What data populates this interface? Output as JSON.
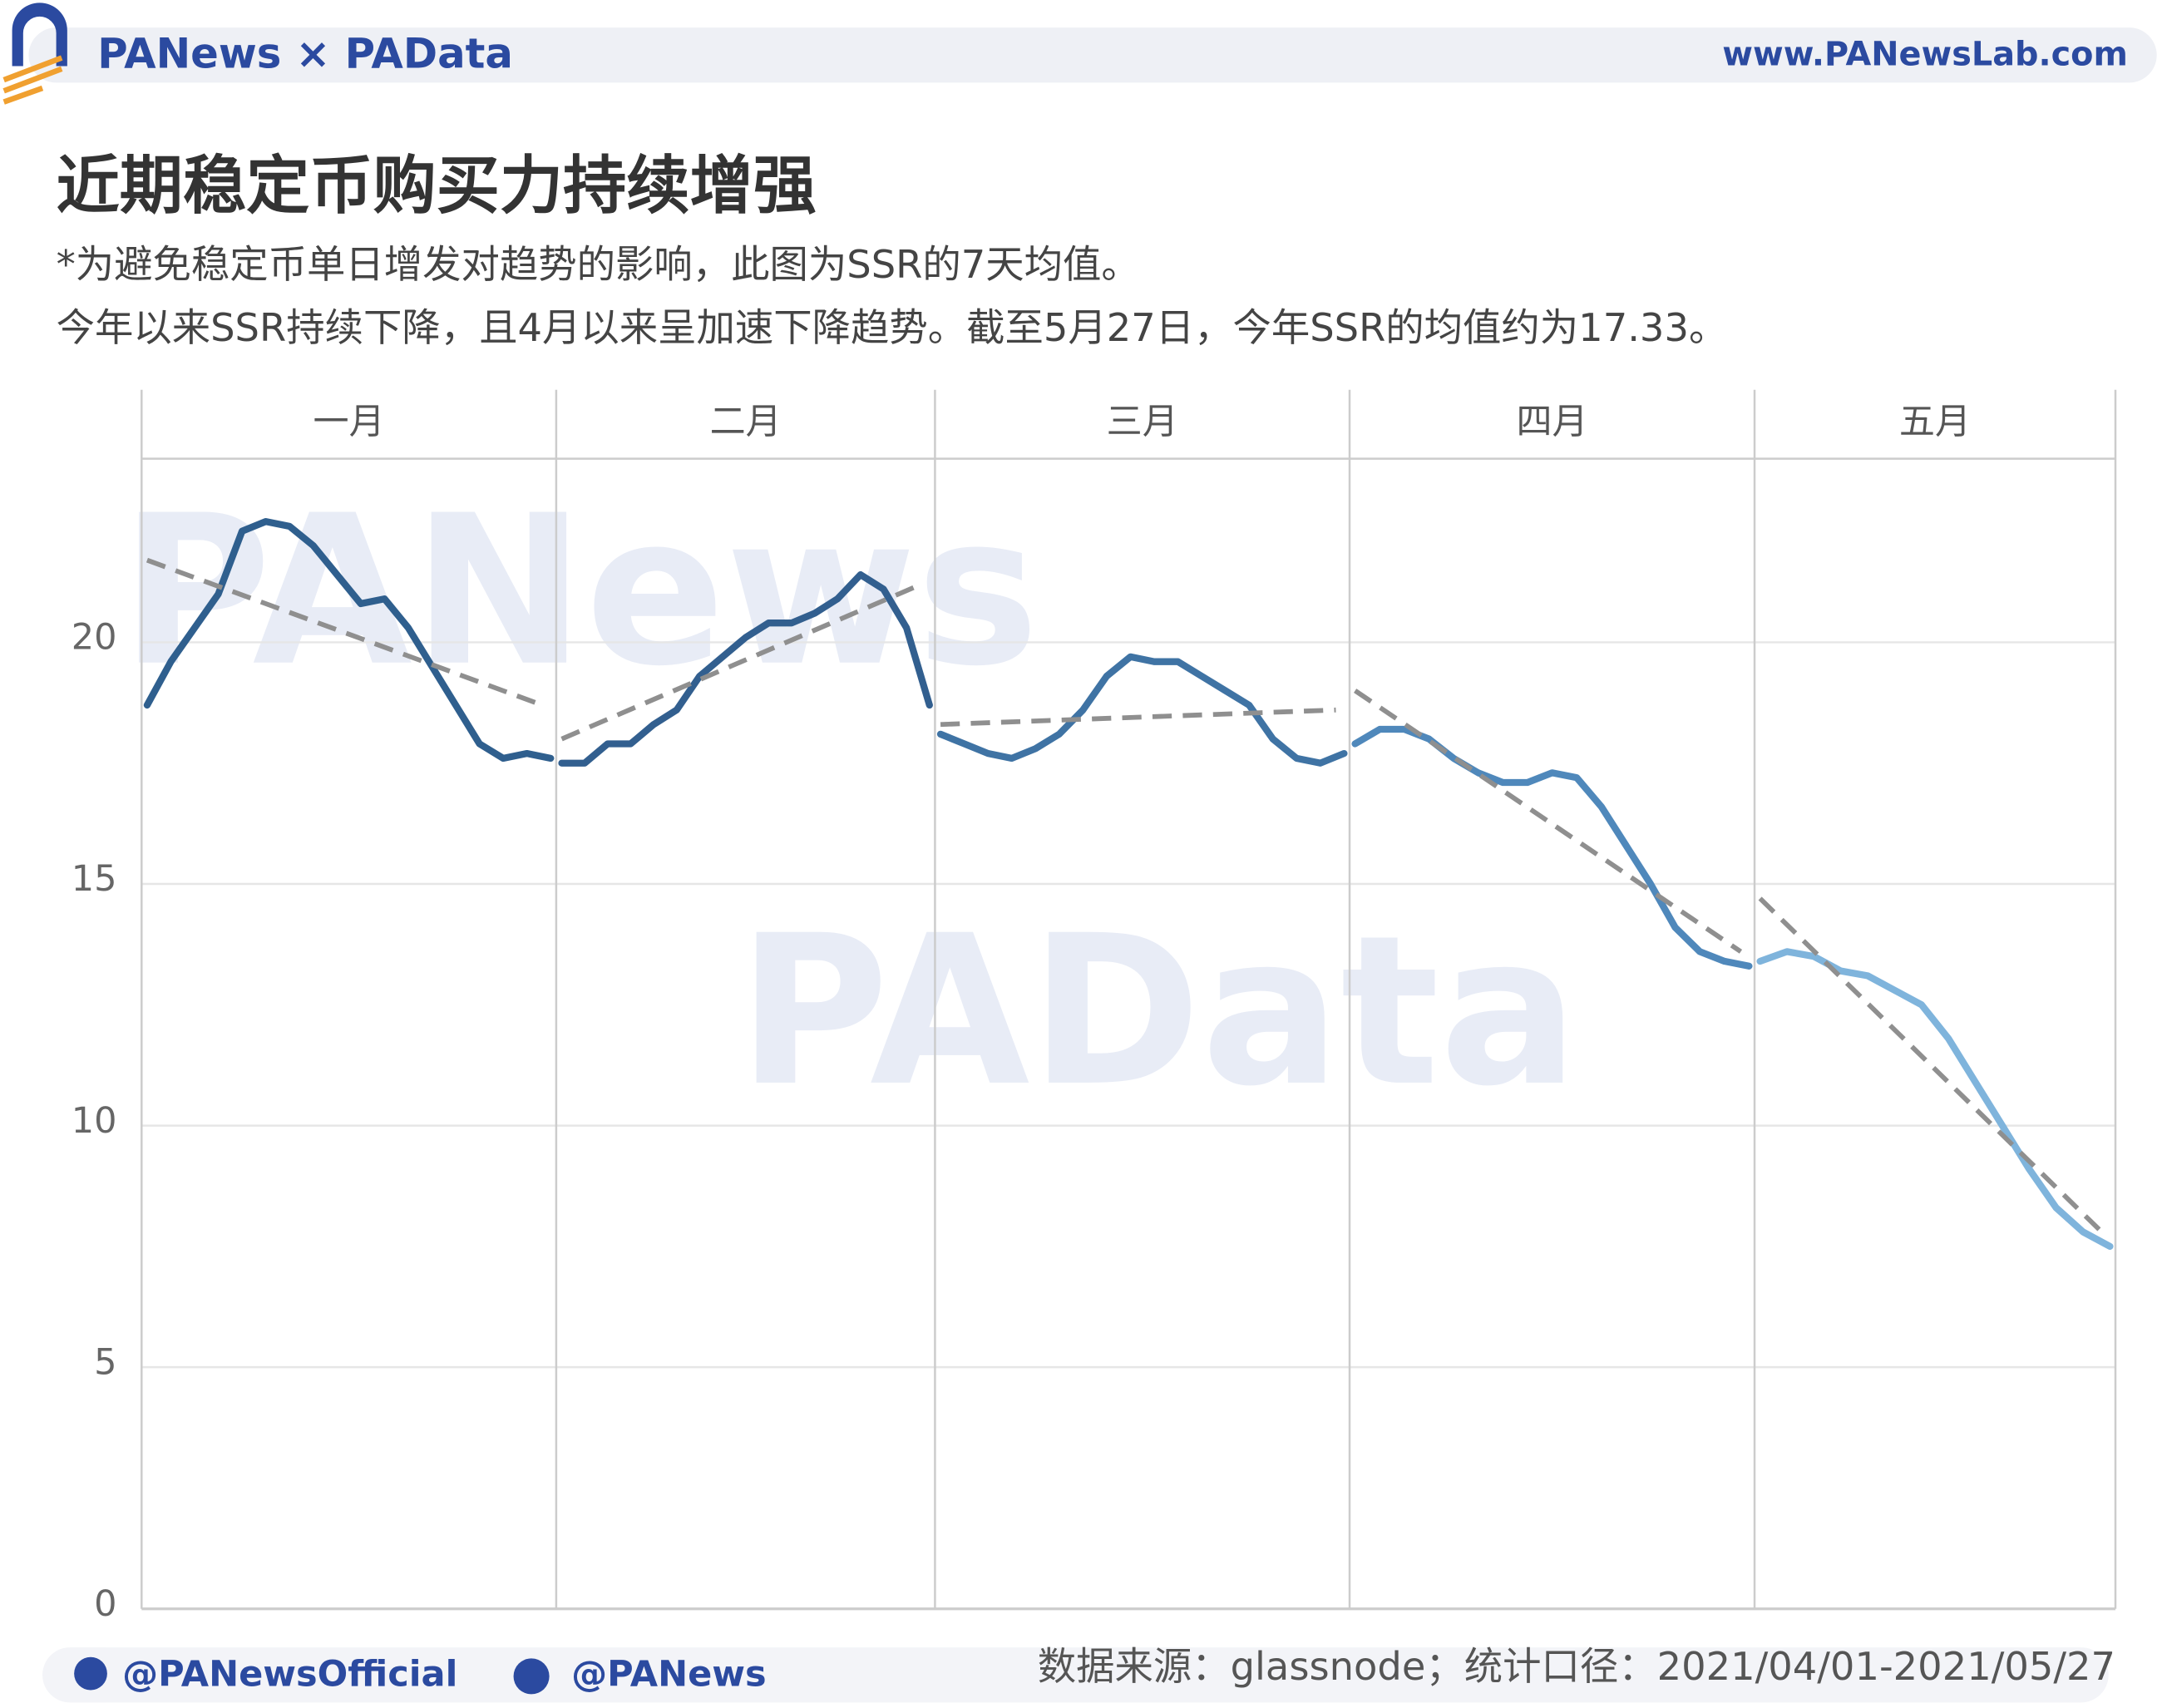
{
  "header": {
    "brand": "PANews × PAData",
    "site": "www.PANewsLab.com"
  },
  "chart_data": {
    "type": "line",
    "title": "近期稳定币购买力持续增强",
    "subtitle": [
      "*为避免稳定币单日增发对趋势的影响，此图为SSR的7天均值。",
      "今年以来SSR持续下降，且4月以来呈加速下降趋势。截至5月27日，今年SSR的均值约为17.33。"
    ],
    "ylim": [
      0,
      23.8
    ],
    "yticks": [
      0,
      5,
      10,
      15,
      20
    ],
    "grid": true,
    "trend_color": "#8f8f8f",
    "panels": [
      {
        "label": "一月",
        "color": "#2f5f8e",
        "values": [
          18.7,
          19.6,
          20.3,
          21.0,
          22.3,
          22.5,
          22.4,
          22.0,
          21.4,
          20.8,
          20.9,
          20.3,
          19.5,
          18.7,
          17.9,
          17.6,
          17.7,
          17.6
        ],
        "trend_line": [
          21.7,
          18.7
        ]
      },
      {
        "label": "二月",
        "color": "#325f8f",
        "values": [
          17.5,
          17.5,
          17.9,
          17.9,
          18.3,
          18.6,
          19.3,
          19.7,
          20.1,
          20.4,
          20.4,
          20.6,
          20.9,
          21.4,
          21.1,
          20.3,
          18.7
        ],
        "trend_line": [
          18.0,
          21.2
        ]
      },
      {
        "label": "三月",
        "color": "#3f73a4",
        "values": [
          18.1,
          17.9,
          17.7,
          17.6,
          17.8,
          18.1,
          18.6,
          19.3,
          19.7,
          19.6,
          19.6,
          19.3,
          19.0,
          18.7,
          18.0,
          17.6,
          17.5,
          17.7
        ],
        "trend_line": [
          18.3,
          18.6
        ]
      },
      {
        "label": "四月",
        "color": "#4f88bb",
        "values": [
          17.9,
          18.2,
          18.2,
          18.0,
          17.6,
          17.3,
          17.1,
          17.1,
          17.3,
          17.2,
          16.6,
          15.8,
          15.0,
          14.1,
          13.6,
          13.4,
          13.3
        ],
        "trend_line": [
          19.0,
          13.6
        ]
      },
      {
        "label": "五月",
        "color": "#7fb4dc",
        "values": [
          13.4,
          13.6,
          13.5,
          13.2,
          13.1,
          12.8,
          12.5,
          11.8,
          10.9,
          10.0,
          9.1,
          8.3,
          7.8,
          7.5
        ],
        "trend_line": [
          14.7,
          7.8
        ]
      }
    ],
    "watermarks": [
      "PANews",
      "PAData"
    ]
  },
  "footer": {
    "twitter": "@PANewsOfficial",
    "weibo": "@PANews",
    "source": "数据来源：glassnode；统计口径：2021/04/01-2021/05/27"
  }
}
